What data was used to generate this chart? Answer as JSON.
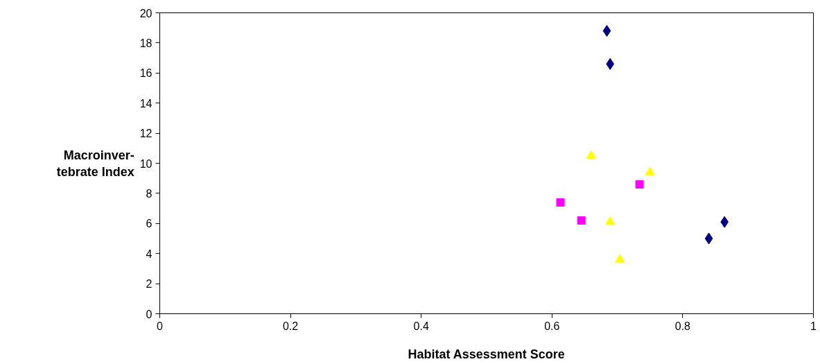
{
  "chart_data": {
    "type": "scatter",
    "xlabel": "Habitat Assessment Score",
    "ylabel": "Macroinver-\ntebrate Index",
    "xlim": [
      0,
      1
    ],
    "xticks": [
      0,
      0.2,
      0.4,
      0.6,
      0.8,
      1
    ],
    "ylim": [
      0,
      20
    ],
    "yticks": [
      0,
      2,
      4,
      6,
      8,
      10,
      12,
      14,
      16,
      18,
      20
    ],
    "series": [
      {
        "color": "#000080",
        "marker": "diamond",
        "x": [
          0.684,
          0.689,
          0.84,
          0.864
        ],
        "values": [
          18.8,
          16.6,
          5.0,
          6.1
        ]
      },
      {
        "color": "#ff00ff",
        "marker": "square",
        "x": [
          0.613,
          0.645,
          0.734
        ],
        "values": [
          7.4,
          6.2,
          8.6
        ]
      },
      {
        "color": "#ffff00",
        "marker": "triangle",
        "x": [
          0.66,
          0.75,
          0.689,
          0.704
        ],
        "values": [
          10.5,
          9.4,
          6.1,
          3.6
        ]
      }
    ]
  }
}
